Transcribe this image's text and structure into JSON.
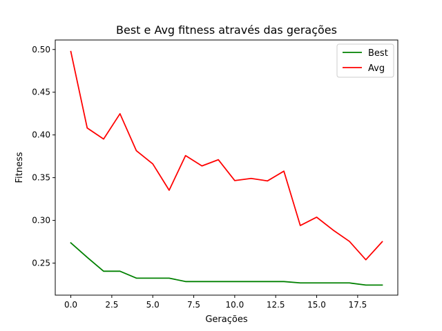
{
  "chart_data": {
    "type": "line",
    "title": "Best e Avg fitness através das gerações",
    "xlabel": "Gerações",
    "ylabel": "Fitness",
    "xlim": [
      -0.95,
      19.95
    ],
    "ylim": [
      0.2125,
      0.5111
    ],
    "x_ticks": [
      "0.0",
      "2.5",
      "5.0",
      "7.5",
      "10.0",
      "12.5",
      "15.0",
      "17.5"
    ],
    "y_ticks": [
      "0.25",
      "0.30",
      "0.35",
      "0.40",
      "0.45",
      "0.50"
    ],
    "x": [
      0,
      1,
      2,
      3,
      4,
      5,
      6,
      7,
      8,
      9,
      10,
      11,
      12,
      13,
      14,
      15,
      16,
      17,
      18,
      19
    ],
    "series": [
      {
        "name": "Best",
        "color": "#008000",
        "values": [
          0.2737,
          0.2567,
          0.2405,
          0.2405,
          0.2324,
          0.2324,
          0.2324,
          0.2284,
          0.2284,
          0.2284,
          0.2284,
          0.2284,
          0.2284,
          0.2284,
          0.2268,
          0.2268,
          0.2268,
          0.2268,
          0.2243,
          0.2243
        ]
      },
      {
        "name": "Avg",
        "color": "#ff0000",
        "values": [
          0.4976,
          0.4081,
          0.3952,
          0.4248,
          0.3815,
          0.3661,
          0.3353,
          0.3758,
          0.3637,
          0.371,
          0.3466,
          0.3491,
          0.3462,
          0.3576,
          0.294,
          0.3037,
          0.2887,
          0.2754,
          0.2539,
          0.275
        ]
      }
    ],
    "legend_position": "top-right",
    "grid": false
  }
}
